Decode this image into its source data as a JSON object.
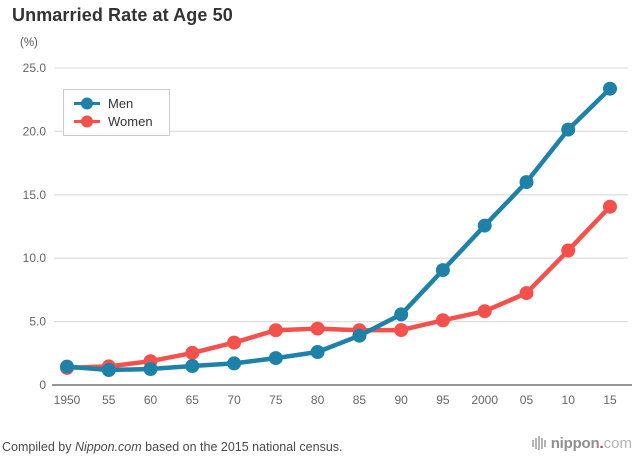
{
  "chart_data": {
    "type": "line",
    "title": "Unmarried Rate at Age 50",
    "unit_label": "(%)",
    "categories": [
      "1950",
      "55",
      "60",
      "65",
      "70",
      "75",
      "80",
      "85",
      "90",
      "95",
      "2000",
      "05",
      "10",
      "15"
    ],
    "series": [
      {
        "name": "Men",
        "color": "#1e81a8",
        "values": [
          1.45,
          1.18,
          1.26,
          1.5,
          1.7,
          2.12,
          2.6,
          3.89,
          5.57,
          9.06,
          12.57,
          16.0,
          20.14,
          23.37
        ]
      },
      {
        "name": "Women",
        "color": "#f4514d",
        "values": [
          1.35,
          1.47,
          1.88,
          2.53,
          3.34,
          4.32,
          4.45,
          4.32,
          4.33,
          5.1,
          5.82,
          7.25,
          10.61,
          14.06
        ]
      }
    ],
    "ylim": [
      0,
      25
    ],
    "y_ticks": [
      {
        "value": 0,
        "label": "0"
      },
      {
        "value": 5,
        "label": "5.0"
      },
      {
        "value": 10,
        "label": "10.0"
      },
      {
        "value": 15,
        "label": "15.0"
      },
      {
        "value": 20,
        "label": "20.0"
      },
      {
        "value": 25,
        "label": "25.0"
      }
    ],
    "grid": "horizontal",
    "legend_position": "top-left",
    "grid_color": "#e0e0e0",
    "axis_color": "#737373",
    "tick_color": "#666666"
  },
  "footer": {
    "prefix": "Compiled by ",
    "source": "Nippon.com",
    "suffix": " based on the 2015 national census."
  },
  "logo": {
    "word": "nippon",
    "dot": ".",
    "tld": "com"
  }
}
